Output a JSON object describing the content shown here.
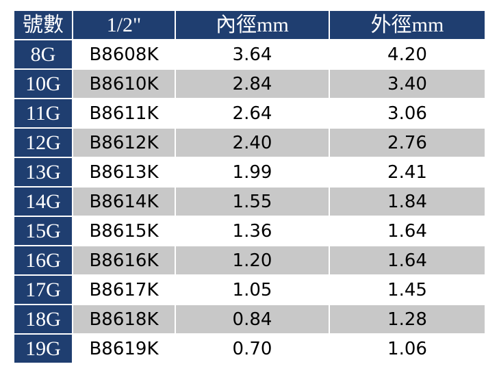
{
  "table": {
    "header": [
      "號數",
      "1/2\"",
      "內徑mm",
      "外徑mm"
    ],
    "rows": [
      [
        "8G",
        "B8608K",
        "3.64",
        "4.20"
      ],
      [
        "10G",
        "B8610K",
        "2.84",
        "3.40"
      ],
      [
        "11G",
        "B8611K",
        "2.64",
        "3.06"
      ],
      [
        "12G",
        "B8612K",
        "2.40",
        "2.76"
      ],
      [
        "13G",
        "B8613K",
        "1.99",
        "2.41"
      ],
      [
        "14G",
        "B8614K",
        "1.55",
        "1.84"
      ],
      [
        "15G",
        "B8615K",
        "1.36",
        "1.64"
      ],
      [
        "16G",
        "B8616K",
        "1.20",
        "1.64"
      ],
      [
        "17G",
        "B8617K",
        "1.05",
        "1.45"
      ],
      [
        "18G",
        "B8618K",
        "0.84",
        "1.28"
      ],
      [
        "19G",
        "B8619K",
        "0.70",
        "1.06"
      ]
    ]
  }
}
